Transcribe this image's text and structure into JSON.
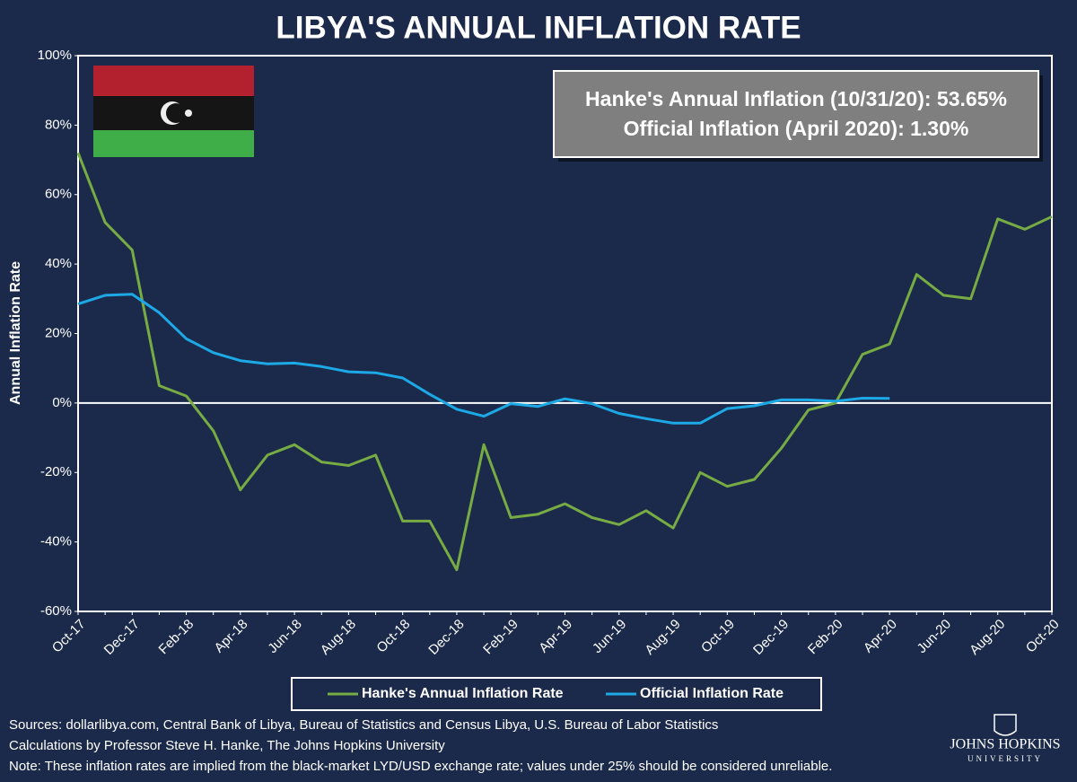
{
  "chart_data": {
    "type": "line",
    "title": "LIBYA'S ANNUAL INFLATION RATE",
    "y_label": "Annual Inflation Rate",
    "annotations": [
      "Hanke's Annual Inflation (10/31/20): 53.65%",
      "Official Inflation (April 2020): 1.30%"
    ],
    "sources": [
      "Sources: dollarlibya.com, Central Bank of Libya, Bureau of Statistics and Census Libya, U.S. Bureau of Labor Statistics",
      "Calculations by Professor Steve H. Hanke, The Johns Hopkins University",
      "Note: These inflation rates are implied from the black-market LYD/USD exchange rate; values under 25% should be considered unreliable."
    ],
    "logo": [
      "JOHNS HOPKINS",
      "UNIVERSITY"
    ],
    "categories": [
      "Oct-17",
      null,
      "Dec-17",
      null,
      "Feb-18",
      null,
      "Apr-18",
      null,
      "Jun-18",
      null,
      "Aug-18",
      null,
      "Oct-18",
      null,
      "Dec-18",
      null,
      "Feb-19",
      null,
      "Apr-19",
      null,
      "Jun-19",
      null,
      "Aug-19",
      null,
      "Oct-19",
      null,
      "Dec-19",
      null,
      "Feb-20",
      null,
      "Apr-20",
      null,
      "Jun-20",
      null,
      "Aug-20",
      null,
      "Oct-20"
    ],
    "series": [
      {
        "name": "Hanke's Annual Inflation Rate",
        "color": "#77ab43",
        "values": [
          72,
          52,
          44,
          5,
          2,
          -8,
          -25,
          -15,
          -12,
          -17,
          -18,
          -15,
          -34,
          -34,
          -48,
          -12,
          -33,
          -32,
          -29,
          -33,
          -35,
          -31,
          -36,
          -20,
          -24,
          -22,
          -13,
          -2,
          0,
          14,
          17,
          37,
          31,
          30,
          53,
          50,
          53.65
        ]
      },
      {
        "name": "Official Inflation Rate",
        "color": "#1ca9e6",
        "values": [
          28.5,
          31,
          31.3,
          26,
          18.5,
          14.5,
          12.2,
          11.3,
          11.5,
          10.5,
          9,
          8.7,
          7.2,
          2.5,
          -1.8,
          -3.8,
          -0.2,
          -1,
          1.2,
          -0.2,
          -3,
          -4.5,
          -5.8,
          -5.8,
          -1.6,
          -0.8,
          0.9,
          0.9,
          0.5,
          1.4,
          1.3,
          null,
          null,
          null,
          null,
          null,
          null
        ]
      }
    ],
    "ylim": [
      -60,
      100
    ],
    "yticks": [
      {
        "value": -60,
        "label": "-60%"
      },
      {
        "value": -40,
        "label": "-40%"
      },
      {
        "value": -20,
        "label": "-20%"
      },
      {
        "value": 0,
        "label": "0%"
      },
      {
        "value": 20,
        "label": "20%"
      },
      {
        "value": 40,
        "label": "40%"
      },
      {
        "value": 60,
        "label": "60%"
      },
      {
        "value": 80,
        "label": "80%"
      },
      {
        "value": 100,
        "label": "100%"
      }
    ],
    "grid": false
  }
}
